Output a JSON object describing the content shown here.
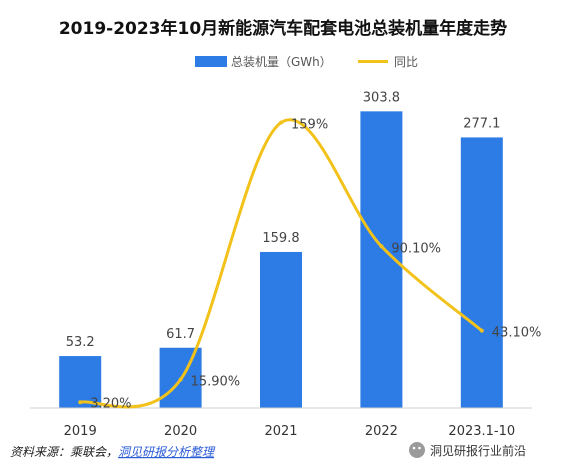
{
  "title": "2019-2023年10月新能源汽车配套电池总装机量年度走势",
  "legend": [
    {
      "label": "总装机量（GWh）",
      "color": "#2d7be4",
      "kind": "bar"
    },
    {
      "label": "同比",
      "color": "#f2c21b",
      "kind": "line"
    }
  ],
  "chart_data": {
    "type": "bar",
    "categories": [
      "2019",
      "2020",
      "2021",
      "2022",
      "2023.1-10"
    ],
    "series": [
      {
        "name": "总装机量（GWh）",
        "type": "bar",
        "values": [
          53.2,
          61.7,
          159.8,
          303.8,
          277.1
        ],
        "labels": [
          "53.2",
          "61.7",
          "159.8",
          "303.8",
          "277.1"
        ]
      },
      {
        "name": "同比",
        "type": "line",
        "values": [
          3.2,
          15.9,
          159,
          90.1,
          43.1
        ],
        "labels": [
          "3.20%",
          "15.90%",
          "159%",
          "90.10%",
          "43.10%"
        ]
      }
    ],
    "bar_ylim": [
      0,
      340
    ],
    "line_ylim": [
      0,
      185
    ],
    "grid": false,
    "legend_position": "top-center",
    "colors": {
      "bar": "#2d7be4",
      "line": "#f2c21b"
    }
  },
  "source": {
    "prefix": "资料来源：乘联会，",
    "link": "洞见研报分析整理"
  },
  "watermark": {
    "brand": "洞见研报行业前沿"
  }
}
